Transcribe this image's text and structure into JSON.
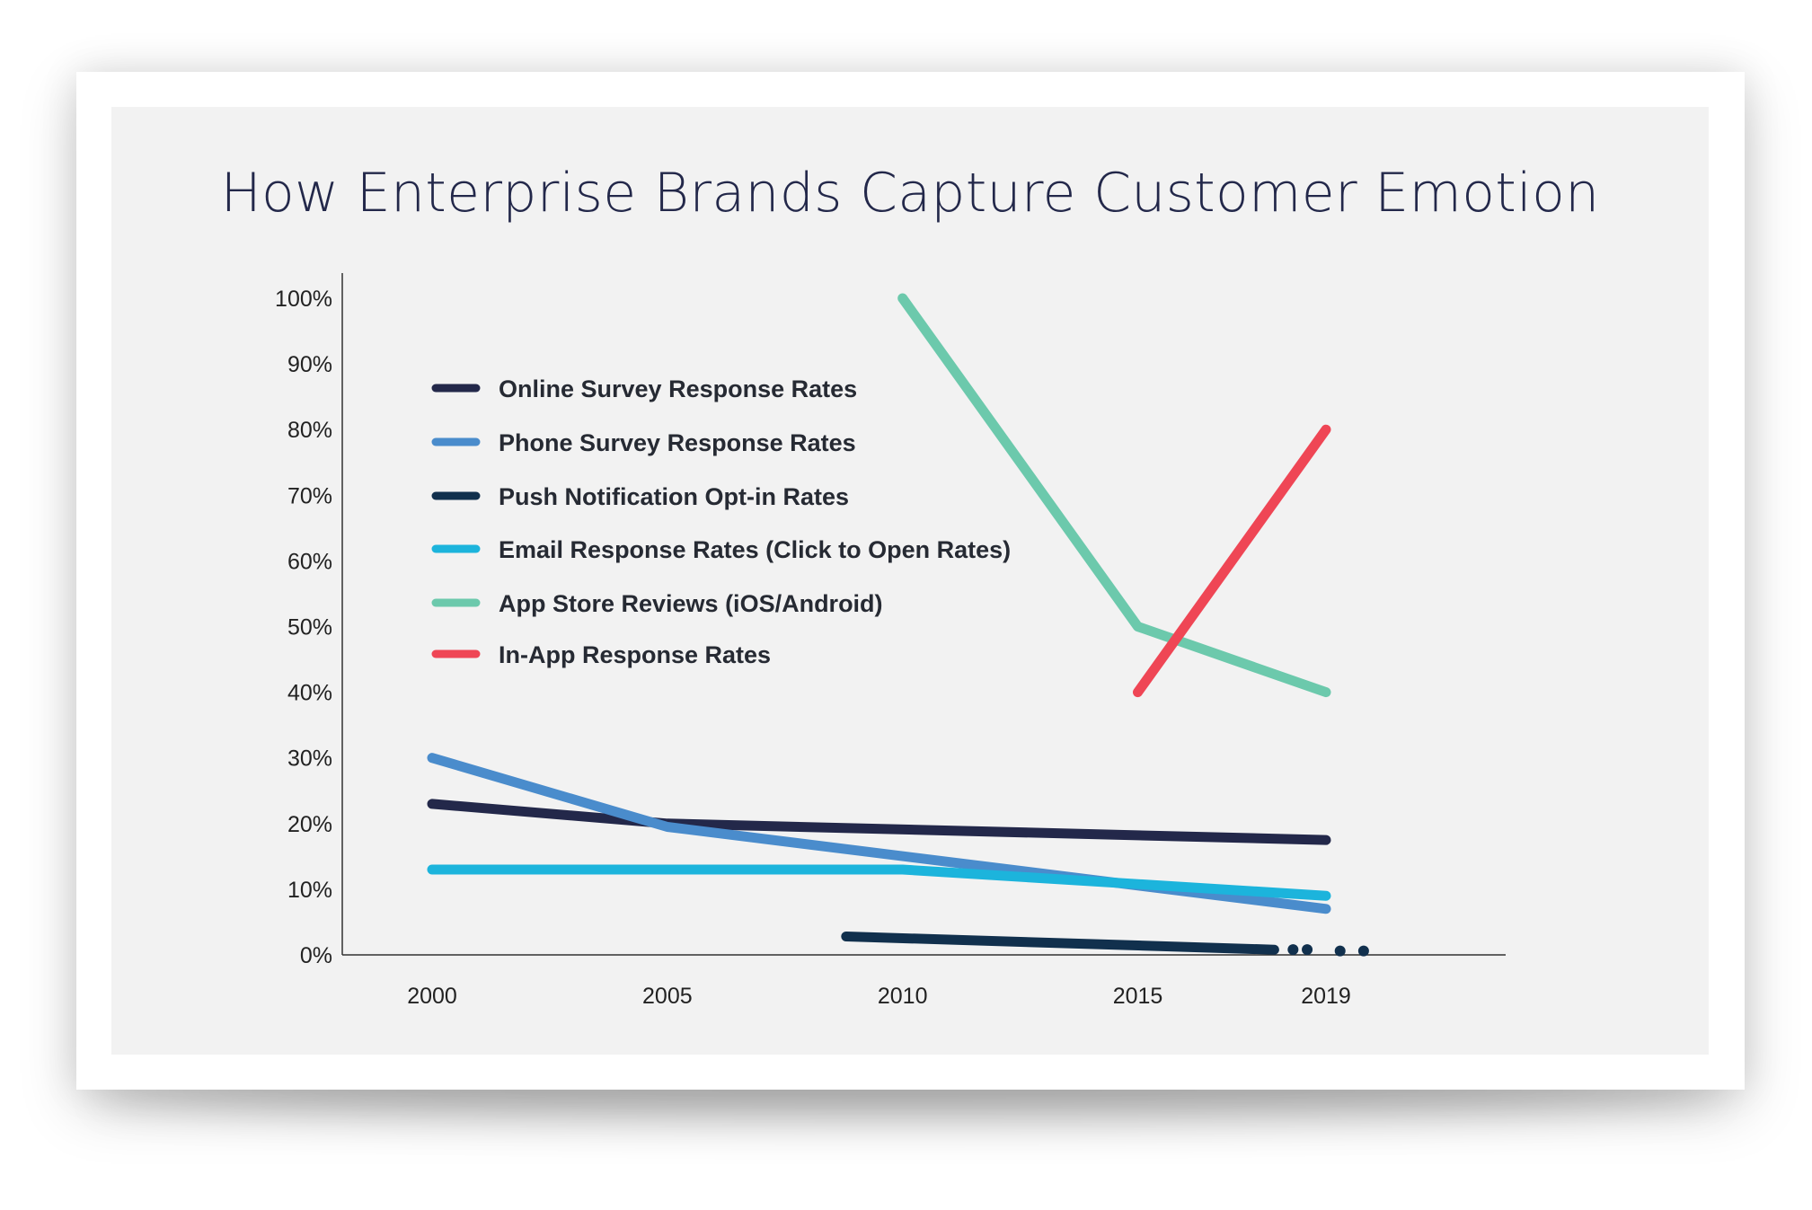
{
  "chart_data": {
    "type": "line",
    "title": "How Enterprise Brands Capture Customer Emotion",
    "xlabel": "",
    "ylabel": "",
    "x_ticks": [
      "2000",
      "2005",
      "2010",
      "2015",
      "2019"
    ],
    "y_ticks": [
      "0%",
      "10%",
      "20%",
      "30%",
      "40%",
      "50%",
      "60%",
      "70%",
      "80%",
      "90%",
      "100%"
    ],
    "ylim": [
      0,
      100
    ],
    "grid": false,
    "legend_position": "top-left",
    "series": [
      {
        "name": "Online Survey Response Rates",
        "color": "#23284a",
        "points": [
          [
            2000,
            23
          ],
          [
            2005,
            20
          ],
          [
            2019,
            17.5
          ]
        ]
      },
      {
        "name": "Phone Survey Response Rates",
        "color": "#4a8ccc",
        "points": [
          [
            2000,
            30
          ],
          [
            2005,
            19.5
          ],
          [
            2019,
            7
          ]
        ]
      },
      {
        "name": "Push Notification Opt-in Rates",
        "color": "#11304d",
        "points": [
          [
            2008.8,
            2.8
          ],
          [
            2017.9,
            0.8
          ]
        ],
        "dotted_extension": [
          [
            2018.3,
            0.8
          ],
          [
            2018.6,
            0.8
          ],
          [
            2019.3,
            0.6
          ],
          [
            2019.8,
            0.6
          ]
        ]
      },
      {
        "name": "Email Response Rates (Click to Open Rates)",
        "color": "#1cb4dc",
        "points": [
          [
            2000,
            13
          ],
          [
            2010,
            13
          ],
          [
            2019,
            9
          ]
        ]
      },
      {
        "name": "App Store Reviews (iOS/Android)",
        "color": "#6cc9ac",
        "points": [
          [
            2010,
            100
          ],
          [
            2015,
            50
          ],
          [
            2019,
            40
          ]
        ]
      },
      {
        "name": "In-App Response Rates",
        "color": "#ef4655",
        "points": [
          [
            2015,
            40
          ],
          [
            2019,
            80
          ]
        ]
      }
    ]
  }
}
